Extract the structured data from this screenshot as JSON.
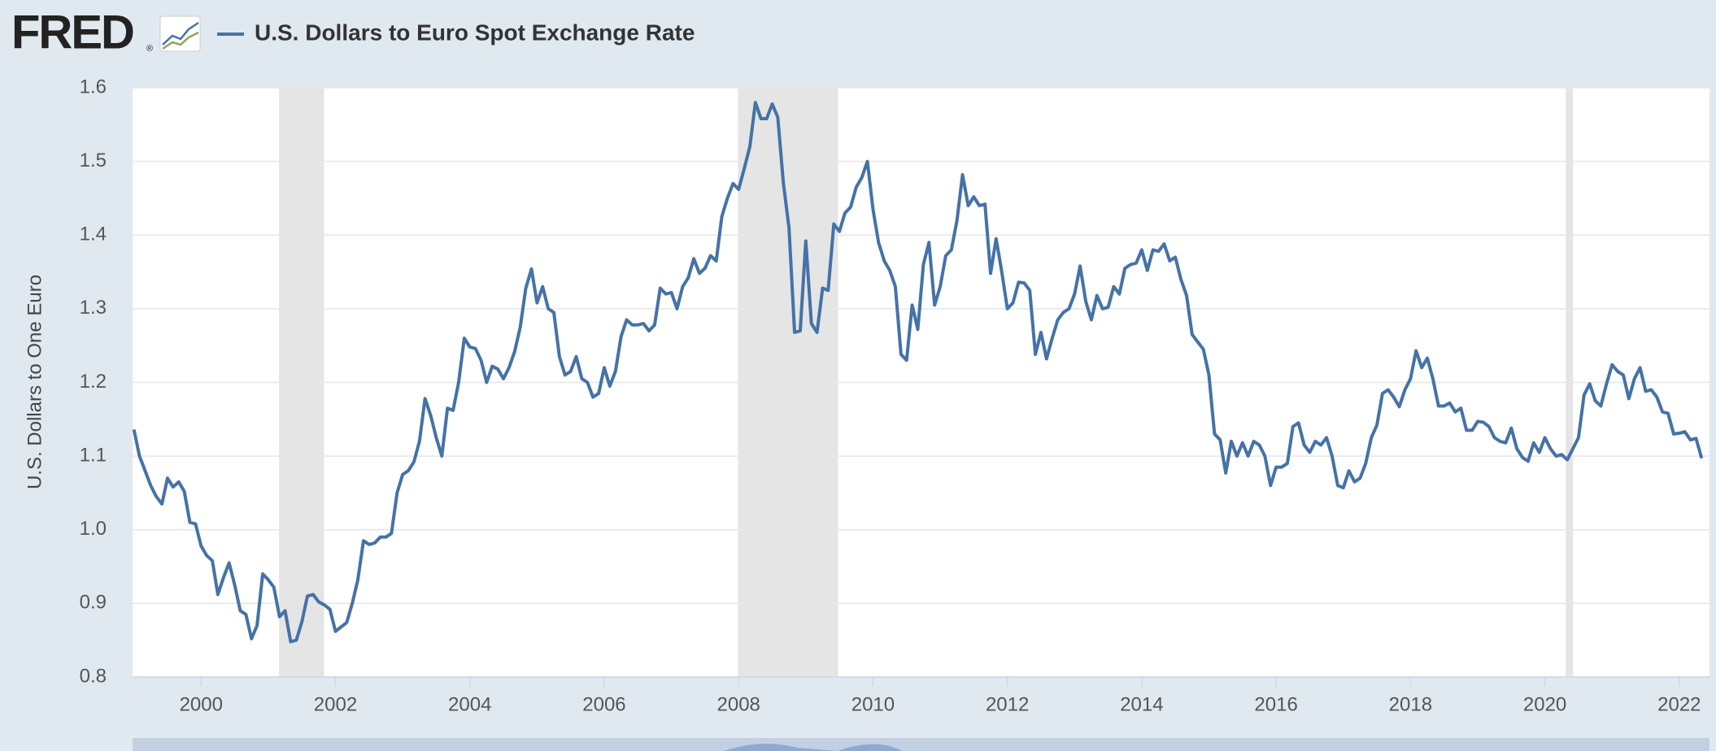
{
  "logo": "FRED",
  "logo_mark": "®",
  "chart_data": {
    "type": "line",
    "ylabel": "U.S. Dollars to One Euro",
    "xlim": [
      1998.98,
      2022.45
    ],
    "ylim": [
      0.8,
      1.6
    ],
    "xticks": [
      2000,
      2002,
      2004,
      2006,
      2008,
      2010,
      2012,
      2014,
      2016,
      2018,
      2020,
      2022
    ],
    "yticks": [
      {
        "value": 0.8,
        "label": "0.8"
      },
      0.9,
      {
        "value": 1.0,
        "label": "1.0"
      },
      1.1,
      1.2,
      1.3,
      1.4,
      1.5,
      1.6
    ],
    "grid": true,
    "recessions": [
      [
        2001.16,
        2001.83
      ],
      [
        2007.99,
        2009.48
      ],
      [
        2020.31,
        2020.42
      ]
    ],
    "recession_color": "#e5e5e5",
    "x": [
      1999,
      1999.083,
      1999.167,
      1999.25,
      1999.333,
      1999.417,
      1999.5,
      1999.583,
      1999.667,
      1999.75,
      1999.833,
      1999.917,
      2000,
      2000.083,
      2000.167,
      2000.25,
      2000.333,
      2000.417,
      2000.5,
      2000.583,
      2000.667,
      2000.75,
      2000.833,
      2000.917,
      2001,
      2001.083,
      2001.167,
      2001.25,
      2001.333,
      2001.417,
      2001.5,
      2001.583,
      2001.667,
      2001.75,
      2001.833,
      2001.917,
      2002,
      2002.083,
      2002.167,
      2002.25,
      2002.333,
      2002.417,
      2002.5,
      2002.583,
      2002.667,
      2002.75,
      2002.833,
      2002.917,
      2003,
      2003.083,
      2003.167,
      2003.25,
      2003.333,
      2003.417,
      2003.5,
      2003.583,
      2003.667,
      2003.75,
      2003.833,
      2003.917,
      2004,
      2004.083,
      2004.167,
      2004.25,
      2004.333,
      2004.417,
      2004.5,
      2004.583,
      2004.667,
      2004.75,
      2004.833,
      2004.917,
      2005,
      2005.083,
      2005.167,
      2005.25,
      2005.333,
      2005.417,
      2005.5,
      2005.583,
      2005.667,
      2005.75,
      2005.833,
      2005.917,
      2006,
      2006.083,
      2006.167,
      2006.25,
      2006.333,
      2006.417,
      2006.5,
      2006.583,
      2006.667,
      2006.75,
      2006.833,
      2006.917,
      2007,
      2007.083,
      2007.167,
      2007.25,
      2007.333,
      2007.417,
      2007.5,
      2007.583,
      2007.667,
      2007.75,
      2007.833,
      2007.917,
      2008,
      2008.083,
      2008.167,
      2008.25,
      2008.333,
      2008.417,
      2008.5,
      2008.583,
      2008.667,
      2008.75,
      2008.833,
      2008.917,
      2009,
      2009.083,
      2009.167,
      2009.25,
      2009.333,
      2009.417,
      2009.5,
      2009.583,
      2009.667,
      2009.75,
      2009.833,
      2009.917,
      2010,
      2010.083,
      2010.167,
      2010.25,
      2010.333,
      2010.417,
      2010.5,
      2010.583,
      2010.667,
      2010.75,
      2010.833,
      2010.917,
      2011,
      2011.083,
      2011.167,
      2011.25,
      2011.333,
      2011.417,
      2011.5,
      2011.583,
      2011.667,
      2011.75,
      2011.833,
      2011.917,
      2012,
      2012.083,
      2012.167,
      2012.25,
      2012.333,
      2012.417,
      2012.5,
      2012.583,
      2012.667,
      2012.75,
      2012.833,
      2012.917,
      2013,
      2013.083,
      2013.167,
      2013.25,
      2013.333,
      2013.417,
      2013.5,
      2013.583,
      2013.667,
      2013.75,
      2013.833,
      2013.917,
      2014,
      2014.083,
      2014.167,
      2014.25,
      2014.333,
      2014.417,
      2014.5,
      2014.583,
      2014.667,
      2014.75,
      2014.833,
      2014.917,
      2015,
      2015.083,
      2015.167,
      2015.25,
      2015.333,
      2015.417,
      2015.5,
      2015.583,
      2015.667,
      2015.75,
      2015.833,
      2015.917,
      2016,
      2016.083,
      2016.167,
      2016.25,
      2016.333,
      2016.417,
      2016.5,
      2016.583,
      2016.667,
      2016.75,
      2016.833,
      2016.917,
      2017,
      2017.083,
      2017.167,
      2017.25,
      2017.333,
      2017.417,
      2017.5,
      2017.583,
      2017.667,
      2017.75,
      2017.833,
      2017.917,
      2018,
      2018.083,
      2018.167,
      2018.25,
      2018.333,
      2018.417,
      2018.5,
      2018.583,
      2018.667,
      2018.75,
      2018.833,
      2018.917,
      2019,
      2019.083,
      2019.167,
      2019.25,
      2019.333,
      2019.417,
      2019.5,
      2019.583,
      2019.667,
      2019.75,
      2019.833,
      2019.917,
      2020,
      2020.083,
      2020.167,
      2020.25,
      2020.333,
      2020.417,
      2020.5,
      2020.583,
      2020.667,
      2020.75,
      2020.833,
      2020.917,
      2021,
      2021.083,
      2021.167,
      2021.25,
      2021.333,
      2021.417,
      2021.5,
      2021.583,
      2021.667,
      2021.75,
      2021.833,
      2021.917,
      2022,
      2022.083,
      2022.167,
      2022.25,
      2022.333
    ],
    "series": [
      {
        "name": "U.S. Dollars to Euro Spot Exchange Rate",
        "color": "#4572a7",
        "values": [
          1.136,
          1.1,
          1.08,
          1.06,
          1.045,
          1.035,
          1.07,
          1.058,
          1.065,
          1.052,
          1.01,
          1.008,
          0.978,
          0.965,
          0.958,
          0.912,
          0.935,
          0.955,
          0.925,
          0.89,
          0.885,
          0.852,
          0.87,
          0.94,
          0.932,
          0.922,
          0.882,
          0.89,
          0.848,
          0.85,
          0.875,
          0.91,
          0.912,
          0.902,
          0.898,
          0.892,
          0.862,
          0.868,
          0.874,
          0.9,
          0.932,
          0.985,
          0.98,
          0.982,
          0.99,
          0.99,
          0.995,
          1.05,
          1.075,
          1.08,
          1.092,
          1.12,
          1.178,
          1.155,
          1.125,
          1.1,
          1.165,
          1.162,
          1.2,
          1.26,
          1.248,
          1.246,
          1.23,
          1.2,
          1.222,
          1.218,
          1.205,
          1.22,
          1.242,
          1.275,
          1.328,
          1.354,
          1.308,
          1.33,
          1.3,
          1.295,
          1.235,
          1.21,
          1.215,
          1.235,
          1.205,
          1.2,
          1.18,
          1.185,
          1.22,
          1.195,
          1.215,
          1.262,
          1.285,
          1.278,
          1.278,
          1.28,
          1.27,
          1.278,
          1.328,
          1.32,
          1.322,
          1.3,
          1.33,
          1.342,
          1.368,
          1.348,
          1.355,
          1.372,
          1.365,
          1.425,
          1.45,
          1.47,
          1.462,
          1.49,
          1.52,
          1.58,
          1.558,
          1.558,
          1.578,
          1.56,
          1.47,
          1.41,
          1.268,
          1.27,
          1.392,
          1.28,
          1.268,
          1.328,
          1.325,
          1.415,
          1.405,
          1.43,
          1.438,
          1.465,
          1.478,
          1.5,
          1.435,
          1.39,
          1.365,
          1.352,
          1.33,
          1.238,
          1.23,
          1.305,
          1.272,
          1.36,
          1.39,
          1.305,
          1.33,
          1.372,
          1.38,
          1.42,
          1.482,
          1.44,
          1.452,
          1.44,
          1.442,
          1.348,
          1.395,
          1.35,
          1.3,
          1.308,
          1.336,
          1.335,
          1.325,
          1.238,
          1.268,
          1.232,
          1.26,
          1.285,
          1.295,
          1.3,
          1.32,
          1.358,
          1.31,
          1.285,
          1.318,
          1.3,
          1.302,
          1.33,
          1.32,
          1.355,
          1.36,
          1.362,
          1.38,
          1.352,
          1.38,
          1.378,
          1.388,
          1.365,
          1.37,
          1.34,
          1.318,
          1.265,
          1.255,
          1.245,
          1.21,
          1.13,
          1.122,
          1.077,
          1.12,
          1.1,
          1.118,
          1.1,
          1.12,
          1.115,
          1.1,
          1.06,
          1.085,
          1.085,
          1.09,
          1.14,
          1.145,
          1.115,
          1.105,
          1.12,
          1.115,
          1.125,
          1.1,
          1.06,
          1.057,
          1.08,
          1.065,
          1.07,
          1.09,
          1.125,
          1.142,
          1.185,
          1.19,
          1.18,
          1.167,
          1.19,
          1.205,
          1.243,
          1.22,
          1.233,
          1.205,
          1.168,
          1.168,
          1.172,
          1.16,
          1.165,
          1.135,
          1.135,
          1.147,
          1.146,
          1.14,
          1.125,
          1.12,
          1.118,
          1.138,
          1.11,
          1.098,
          1.093,
          1.118,
          1.105,
          1.125,
          1.11,
          1.1,
          1.102,
          1.095,
          1.11,
          1.125,
          1.183,
          1.198,
          1.175,
          1.168,
          1.198,
          1.224,
          1.215,
          1.21,
          1.178,
          1.205,
          1.22,
          1.188,
          1.19,
          1.18,
          1.16,
          1.158,
          1.13,
          1.131,
          1.133,
          1.122,
          1.124,
          1.097
        ]
      }
    ]
  }
}
